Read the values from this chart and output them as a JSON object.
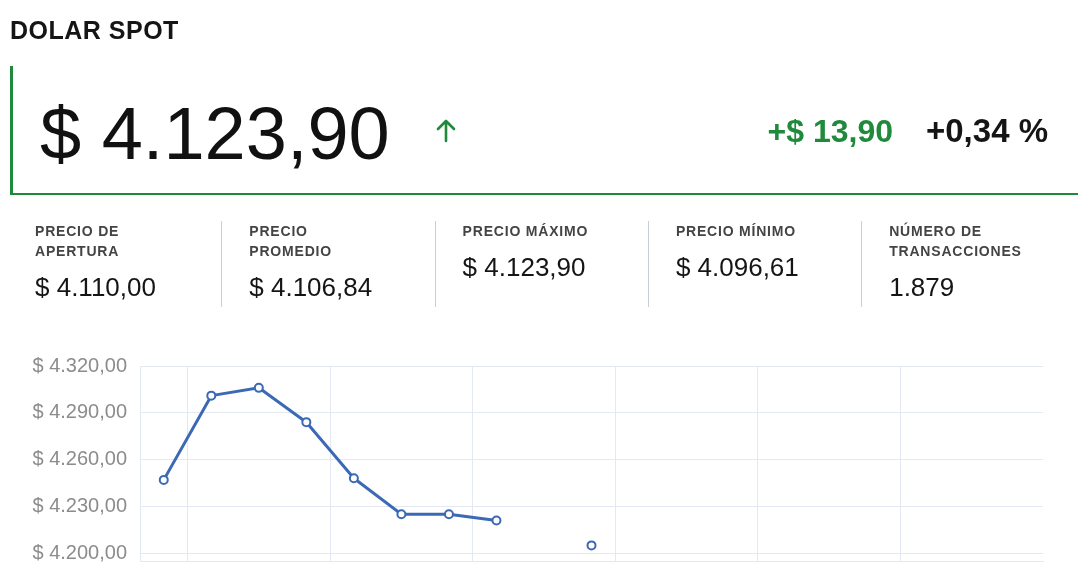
{
  "chart_data": [
    {
      "type": "other",
      "title": "DOLAR SPOT",
      "annotations": [
        "$ 4.123,90",
        "+$ 13,90",
        "+0,34 %",
        "PRECIO DE APERTURA",
        "$ 4.110,00",
        "PRECIO PROMEDIO",
        "$ 4.106,84",
        "PRECIO MÁXIMO",
        "$ 4.123,90",
        "PRECIO MÍNIMO",
        "$ 4.096,61",
        "NÚMERO DE TRANSACCIONES",
        "1.879"
      ]
    },
    {
      "type": "line",
      "categories": [
        null,
        null,
        null,
        null,
        null,
        null,
        null,
        null,
        null,
        null,
        null,
        null,
        null,
        null,
        null,
        null,
        null,
        null,
        null
      ],
      "values": [
        4247,
        4301,
        4306,
        4284,
        4248,
        4225,
        4225,
        4221,
        null,
        4205,
        null,
        null,
        null,
        null,
        null,
        null,
        null,
        null,
        null
      ],
      "color": "#3b69b4",
      "marker": "circle",
      "grid": true,
      "tick_labels": "y",
      "ylim": [
        4195,
        4320
      ],
      "yticks": [
        {
          "value": 4200,
          "label": "$ 4.200,00"
        },
        {
          "value": 4230,
          "label": "$ 4.230,00"
        },
        {
          "value": 4260,
          "label": "$ 4.260,00"
        },
        {
          "value": 4290,
          "label": "$ 4.290,00"
        },
        {
          "value": 4320,
          "label": "$ 4.320,00"
        }
      ]
    }
  ]
}
